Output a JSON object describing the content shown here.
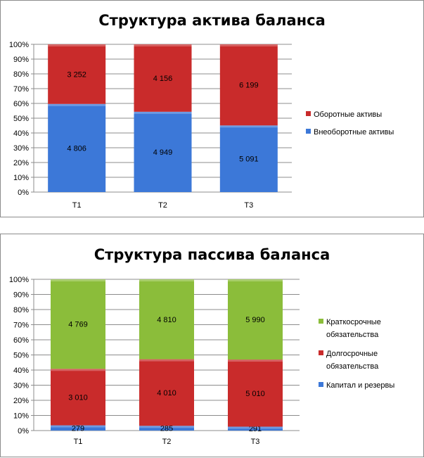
{
  "chart_data": [
    {
      "type": "bar",
      "stacked": true,
      "normalized": true,
      "title": "Структура актива баланса",
      "categories": [
        "Т1",
        "Т2",
        "Т3"
      ],
      "series": [
        {
          "name": "Внеоборотные активы",
          "values": [
            4806,
            4949,
            5091
          ],
          "labels": [
            "4 806",
            "4 949",
            "5 091"
          ],
          "color": "#3c78d8"
        },
        {
          "name": "Оборотные активы",
          "values": [
            3252,
            4156,
            6199
          ],
          "labels": [
            "3 252",
            "4 156",
            "6 199"
          ],
          "color": "#c92b2b"
        }
      ],
      "ylim": [
        0,
        100
      ],
      "yticks": [
        "0%",
        "10%",
        "20%",
        "30%",
        "40%",
        "50%",
        "60%",
        "70%",
        "80%",
        "90%",
        "100%"
      ],
      "grid": true,
      "legend_position": "right",
      "legend": [
        {
          "lines": [
            "Оборотные активы"
          ],
          "series": 1
        },
        {
          "lines": [
            "Внеоборотные активы"
          ],
          "series": 0
        }
      ]
    },
    {
      "type": "bar",
      "stacked": true,
      "normalized": true,
      "title": "Структура пассива баланса",
      "categories": [
        "Т1",
        "Т2",
        "Т3"
      ],
      "series": [
        {
          "name": "Капитал и резервы",
          "values": [
            279,
            285,
            291
          ],
          "labels": [
            "279",
            "285",
            "291"
          ],
          "color": "#3c78d8"
        },
        {
          "name": "Долгосрочные обязательства",
          "values": [
            3010,
            4010,
            5010
          ],
          "labels": [
            "3 010",
            "4 010",
            "5 010"
          ],
          "color": "#c92b2b"
        },
        {
          "name": "Краткосрочные обязательства",
          "values": [
            4769,
            4810,
            5990
          ],
          "labels": [
            "4 769",
            "4 810",
            "5 990"
          ],
          "color": "#8bbd3a"
        }
      ],
      "ylim": [
        0,
        100
      ],
      "yticks": [
        "0%",
        "10%",
        "20%",
        "30%",
        "40%",
        "50%",
        "60%",
        "70%",
        "80%",
        "90%",
        "100%"
      ],
      "grid": true,
      "legend_position": "right",
      "legend": [
        {
          "lines": [
            "Краткосрочные",
            "обязательства"
          ],
          "series": 2
        },
        {
          "lines": [
            "Долгосрочные",
            "обязательства"
          ],
          "series": 1
        },
        {
          "lines": [
            "Капитал и резервы"
          ],
          "series": 0
        }
      ]
    }
  ]
}
